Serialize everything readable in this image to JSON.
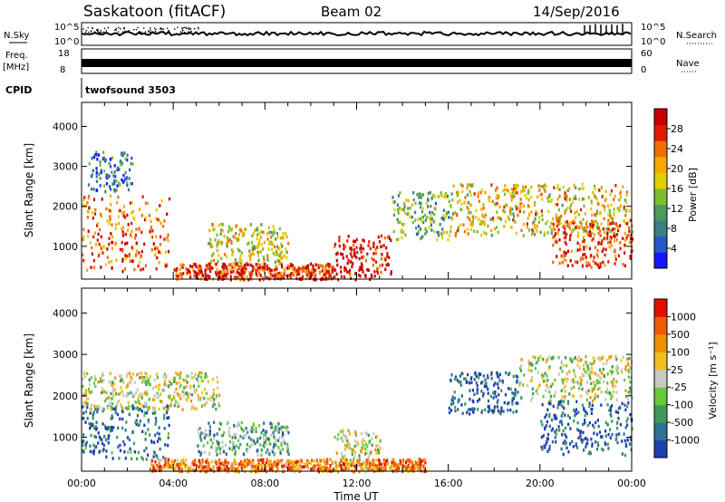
{
  "header": {
    "title": "Saskatoon (fitACF)",
    "beam": "Beam 02",
    "date": "14/Sep/2016"
  },
  "top_panels": {
    "nsky_label": "N.Sky",
    "nsky_ticks": [
      "10^5",
      "10^0"
    ],
    "nsearch_label": "N.Search",
    "nsearch_ticks": [
      "10^5",
      "10^0"
    ],
    "freq_label": "Freq.",
    "freq_unit": "[MHz]",
    "freq_ticks": [
      "18",
      "8"
    ],
    "nave_label": "Nave",
    "nave_ticks": [
      "60",
      "0"
    ],
    "cpid_label": "CPID",
    "cpid_value": "twofsound 3503"
  },
  "chart_data": [
    {
      "type": "heatmap",
      "name": "power",
      "ylabel": "Slant Range [km]",
      "xlabel": "",
      "xlim": [
        0,
        24
      ],
      "ylim": [
        180,
        4600
      ],
      "yticks": [
        "1000",
        "2000",
        "3000",
        "4000"
      ],
      "colorbar_label": "Power [dB]",
      "colorbar_ticks": [
        "4",
        "8",
        "12",
        "16",
        "20",
        "24",
        "28"
      ],
      "colorbar_colors": [
        "#1515ff",
        "#2757c8",
        "#3c7d86",
        "#4e9a5c",
        "#7cbe2c",
        "#e0d000",
        "#f6a800",
        "#f06e00",
        "#e01a00",
        "#c40000"
      ],
      "regions": [
        {
          "t0": 0.0,
          "t1": 3.8,
          "r0": 400,
          "r1": 2300,
          "level": 0.75
        },
        {
          "t0": 0.2,
          "t1": 2.2,
          "r0": 2400,
          "r1": 3400,
          "level": 0.25
        },
        {
          "t0": 5.5,
          "t1": 9.0,
          "r0": 600,
          "r1": 1600,
          "level": 0.55
        },
        {
          "t0": 4.0,
          "t1": 11.0,
          "r0": 200,
          "r1": 600,
          "level": 0.85
        },
        {
          "t0": 11.0,
          "t1": 13.5,
          "r0": 200,
          "r1": 1300,
          "level": 0.95
        },
        {
          "t0": 13.5,
          "t1": 16.0,
          "r0": 1200,
          "r1": 2400,
          "level": 0.4
        },
        {
          "t0": 16.0,
          "t1": 24.0,
          "r0": 1300,
          "r1": 2600,
          "level": 0.6
        },
        {
          "t0": 20.5,
          "t1": 24.0,
          "r0": 500,
          "r1": 1700,
          "level": 0.85
        }
      ]
    },
    {
      "type": "heatmap",
      "name": "velocity",
      "ylabel": "Slant Range [km]",
      "xlabel": "Time UT",
      "xlim": [
        0,
        24
      ],
      "ylim": [
        180,
        4600
      ],
      "xticks": [
        "00:00",
        "04:00",
        "08:00",
        "12:00",
        "16:00",
        "20:00",
        "00:00"
      ],
      "yticks": [
        "1000",
        "2000",
        "3000",
        "4000"
      ],
      "colorbar_label": "Velocity [m s⁻¹]",
      "colorbar_ticks": [
        "1000",
        "500",
        "100",
        "25",
        "-25",
        "-100",
        "-500",
        "-1000"
      ],
      "colorbar_colors": [
        "#1f3fb0",
        "#2f6f95",
        "#3f9a5a",
        "#66c83a",
        "#c8c8c8",
        "#f0c020",
        "#f09000",
        "#ee5a00",
        "#e01000"
      ],
      "regions": [
        {
          "t0": 0.0,
          "t1": 3.8,
          "r0": 500,
          "r1": 1800,
          "level": 0.15
        },
        {
          "t0": 0.0,
          "t1": 6.0,
          "r0": 1700,
          "r1": 2600,
          "level": 0.5
        },
        {
          "t0": 5.0,
          "t1": 9.0,
          "r0": 600,
          "r1": 1400,
          "level": 0.3
        },
        {
          "t0": 11.0,
          "t1": 13.0,
          "r0": 300,
          "r1": 1200,
          "level": 0.5
        },
        {
          "t0": 16.0,
          "t1": 19.0,
          "r0": 1600,
          "r1": 2600,
          "level": 0.1
        },
        {
          "t0": 19.0,
          "t1": 24.0,
          "r0": 1900,
          "r1": 3000,
          "level": 0.5
        },
        {
          "t0": 20.0,
          "t1": 24.0,
          "r0": 600,
          "r1": 1900,
          "level": 0.1
        },
        {
          "t0": 3.0,
          "t1": 15.0,
          "r0": 200,
          "r1": 500,
          "level": 0.75
        }
      ]
    }
  ]
}
